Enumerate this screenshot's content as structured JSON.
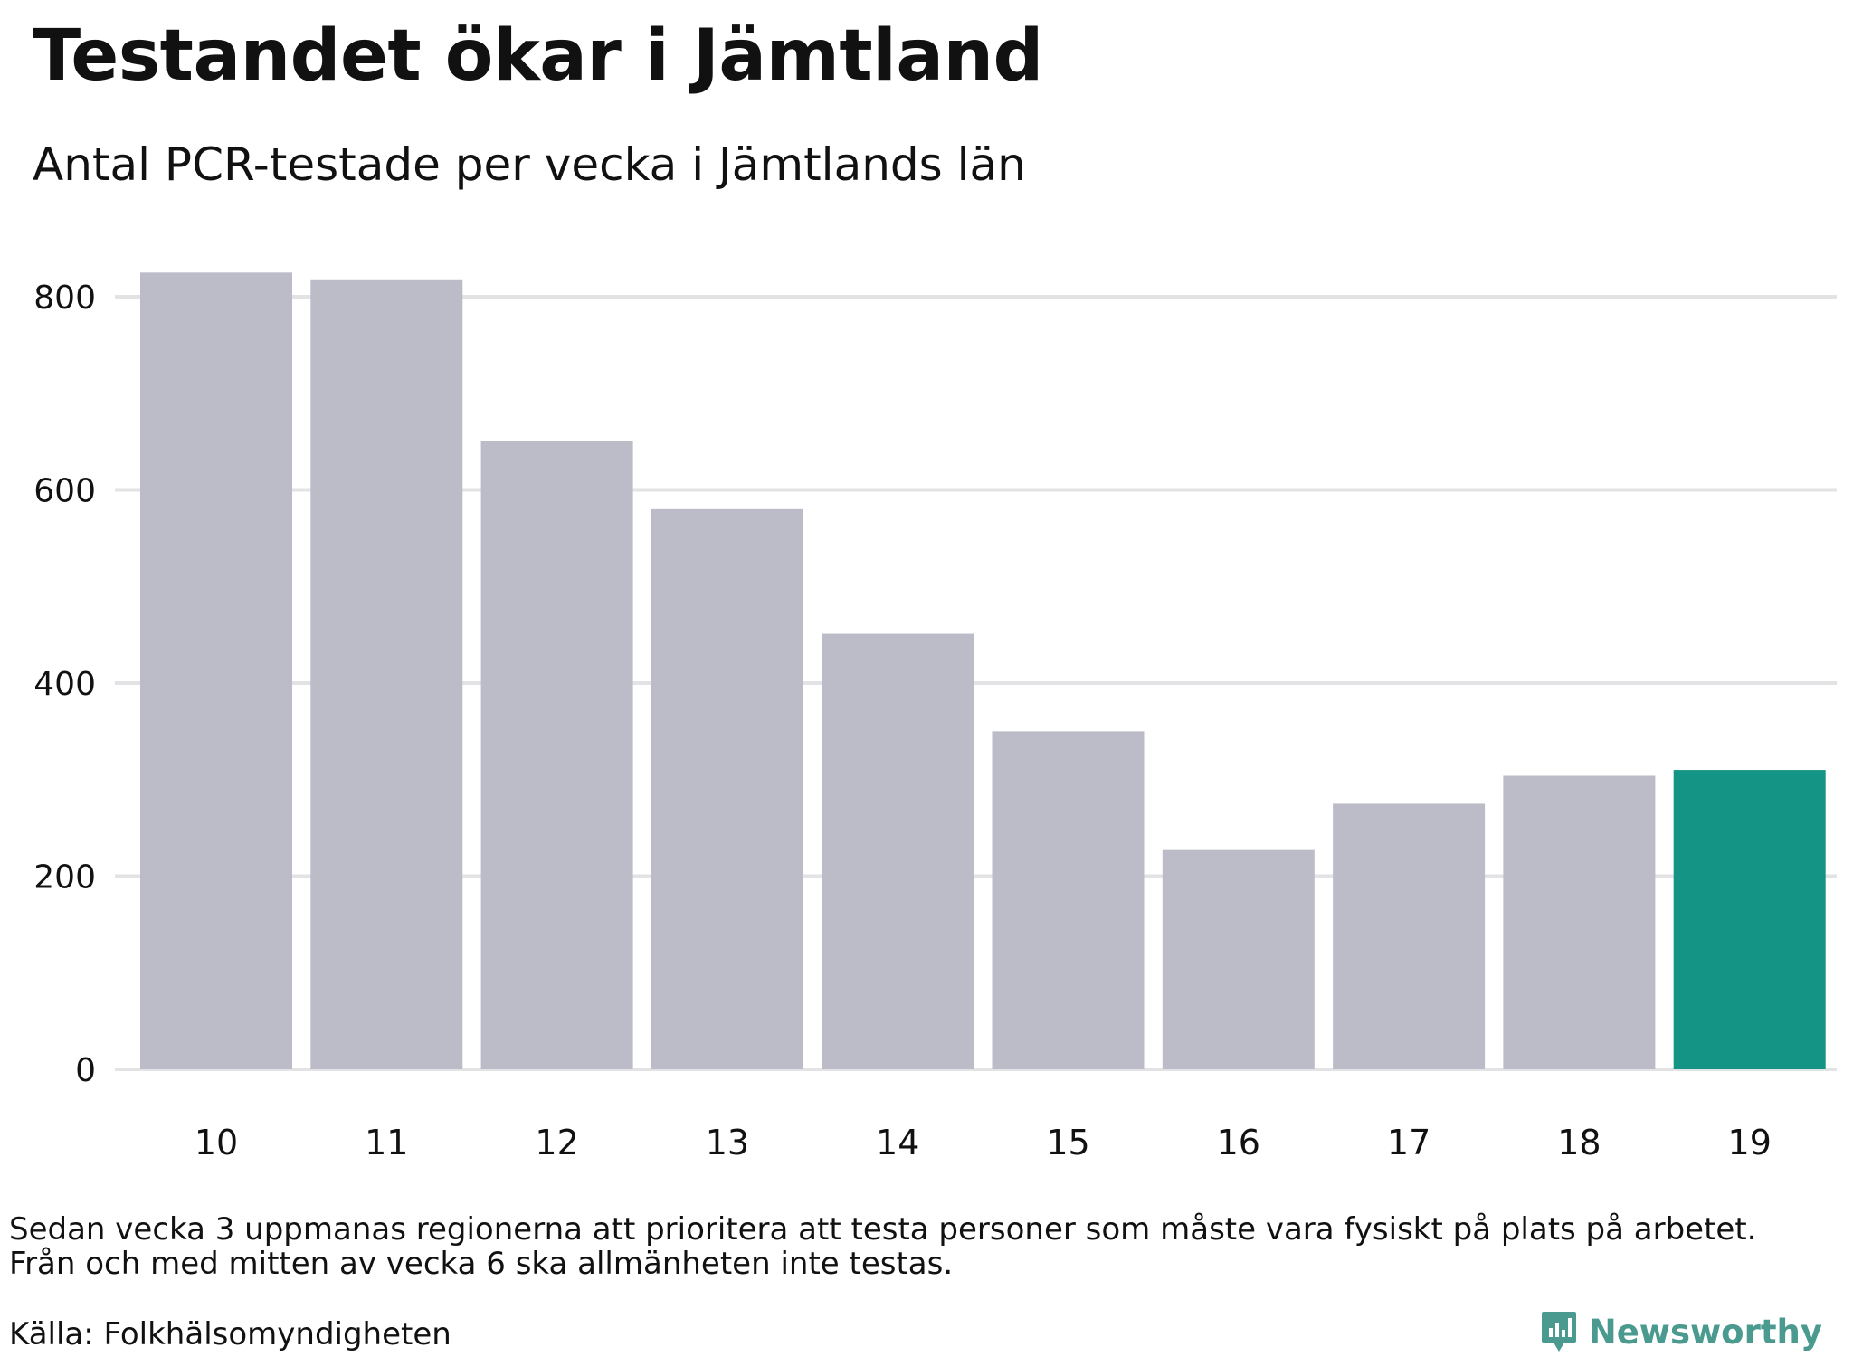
{
  "title": "Testandet ökar i Jämtland",
  "subtitle": "Antal PCR-testade per vecka i Jämtlands län",
  "note": [
    "Sedan vecka 3 uppmanas regionerna att prioritera att testa personer som måste vara fysiskt på plats på arbetet.",
    "Från och med mitten av vecka 6 ska allmänheten inte testas."
  ],
  "source": "Källa: Folkhälsomyndigheten",
  "brand": {
    "name": "Newsworthy",
    "icon": "newsworthy-logo-icon",
    "color": "#4a9a8f"
  },
  "colors": {
    "bar": "#bcbbc8",
    "highlight": "#149484",
    "grid": "#e3e3e6",
    "text": "#111111"
  },
  "chart_data": {
    "type": "bar",
    "categories": [
      "10",
      "11",
      "12",
      "13",
      "14",
      "15",
      "16",
      "17",
      "18",
      "19"
    ],
    "values": [
      825,
      818,
      651,
      580,
      451,
      350,
      227,
      275,
      304,
      310
    ],
    "highlight_index": 9,
    "ylim": [
      0,
      820
    ],
    "yticks": [
      0,
      200,
      400,
      600,
      800
    ],
    "grid": true,
    "legend": "none",
    "xlabel": "",
    "ylabel": ""
  }
}
